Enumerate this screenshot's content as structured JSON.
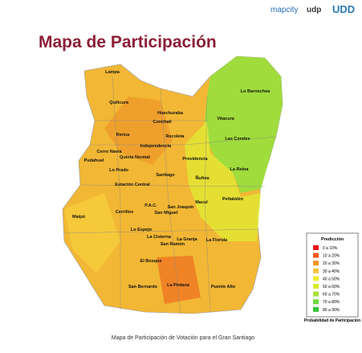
{
  "header": {
    "title": "Mapa de Participación",
    "logos": [
      "mapcity",
      "udp",
      "UDD"
    ]
  },
  "map": {
    "labels": [
      "Lampa",
      "Quilicura",
      "Huechuraba",
      "Conchalí",
      "Renca",
      "Recoleta",
      "Independencia",
      "Cerro Navia",
      "Quinta Normal",
      "Pudahuel",
      "Lo Prado",
      "Santiago",
      "Providencia",
      "Ñuñoa",
      "Vitacura",
      "Lo Barnechea",
      "Las Condes",
      "La Reina",
      "Peñalolén",
      "Estación Central",
      "Maipú",
      "Cerrillos",
      "P.A.C.",
      "San Joaquín",
      "San Miguel",
      "Macul",
      "Lo Espejo",
      "La Cisterna",
      "San Ramón",
      "La Granja",
      "La Florida",
      "El Bosque",
      "La Pintana",
      "San Bernardo",
      "Puente Alto"
    ]
  },
  "legend": {
    "title": "Predicción",
    "items": [
      {
        "label": "0 a 10%",
        "color": "#e8141b"
      },
      {
        "label": "10 a 20%",
        "color": "#f0561e"
      },
      {
        "label": "20 a 30%",
        "color": "#f39425"
      },
      {
        "label": "30 a 40%",
        "color": "#f7c43a"
      },
      {
        "label": "40 a 50%",
        "color": "#f3ea2f"
      },
      {
        "label": "50 a 60%",
        "color": "#d6ea2e"
      },
      {
        "label": "60 a 70%",
        "color": "#a8e23a"
      },
      {
        "label": "70 a 80%",
        "color": "#6fd83d"
      },
      {
        "label": "80 a 90%",
        "color": "#35c43a"
      }
    ],
    "caption": "Probabilidad de Participación"
  },
  "footer": {
    "caption": "Mapa de Participación de Votación para el Gran Santiago"
  }
}
